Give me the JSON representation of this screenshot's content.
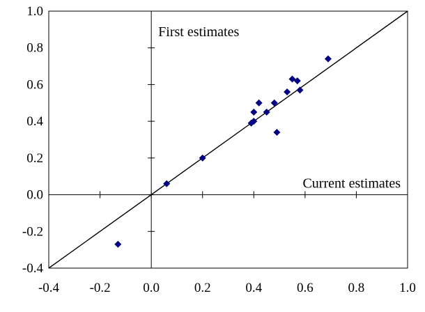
{
  "chart_data": {
    "type": "scatter",
    "title": "",
    "xlabel": "",
    "ylabel": "",
    "xlim": [
      -0.4,
      1.0
    ],
    "ylim": [
      -0.4,
      1.0
    ],
    "x_ticks": [
      -0.4,
      -0.2,
      0.0,
      0.2,
      0.4,
      0.6,
      0.8,
      1.0
    ],
    "y_ticks": [
      -0.4,
      -0.2,
      0.0,
      0.2,
      0.4,
      0.6,
      0.8,
      1.0
    ],
    "x_tick_labels": [
      "-0.4",
      "-0.2",
      "0.0",
      "0.2",
      "0.4",
      "0.6",
      "0.8",
      "1.0"
    ],
    "y_tick_labels": [
      "-0.4",
      "-0.2",
      "0.0",
      "0.2",
      "0.4",
      "0.6",
      "0.8",
      "1.0"
    ],
    "grid": false,
    "legend": "none",
    "annotations": {
      "y_axis_label": "First estimates",
      "x_axis_label": "Current estimates"
    },
    "reference_line": {
      "type": "identity",
      "from": [
        -0.4,
        -0.4
      ],
      "to": [
        1.0,
        1.0
      ]
    },
    "points": [
      {
        "x": -0.13,
        "y": -0.27
      },
      {
        "x": 0.06,
        "y": 0.06
      },
      {
        "x": 0.2,
        "y": 0.2
      },
      {
        "x": 0.39,
        "y": 0.39
      },
      {
        "x": 0.4,
        "y": 0.4
      },
      {
        "x": 0.4,
        "y": 0.45
      },
      {
        "x": 0.42,
        "y": 0.5
      },
      {
        "x": 0.45,
        "y": 0.45
      },
      {
        "x": 0.48,
        "y": 0.5
      },
      {
        "x": 0.49,
        "y": 0.34
      },
      {
        "x": 0.53,
        "y": 0.56
      },
      {
        "x": 0.55,
        "y": 0.63
      },
      {
        "x": 0.57,
        "y": 0.62
      },
      {
        "x": 0.58,
        "y": 0.57
      },
      {
        "x": 0.69,
        "y": 0.74
      }
    ],
    "colors": {
      "marker": "#000080",
      "line": "#000000",
      "axis": "#000000"
    }
  }
}
